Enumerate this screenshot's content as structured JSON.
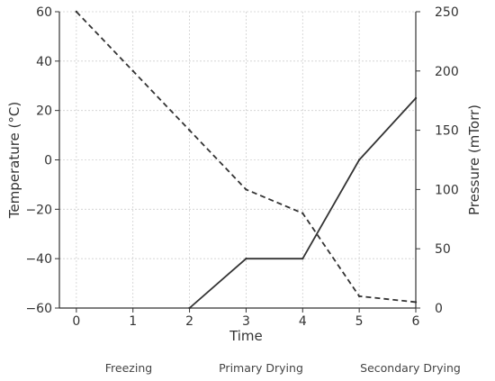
{
  "chart_data": {
    "type": "line",
    "xlabel": "Time",
    "ylabel": "Temperature (°C)",
    "y2label": "Pressure (mTorr)",
    "xlim": [
      -0.3,
      6
    ],
    "ylim": [
      -60,
      60
    ],
    "y2lim": [
      0,
      250
    ],
    "x_ticks": [
      0,
      1,
      2,
      3,
      4,
      5,
      6
    ],
    "y_ticks": [
      -60,
      -40,
      -20,
      0,
      20,
      40,
      60
    ],
    "y2_ticks": [
      0,
      50,
      100,
      150,
      200,
      250
    ],
    "grid": true,
    "series": [
      {
        "axis": "left",
        "style": "solid",
        "color": "#333333",
        "x": [
          2,
          3,
          4,
          5,
          6
        ],
        "y": [
          -60,
          -40,
          -40,
          0,
          25
        ]
      },
      {
        "axis": "right",
        "style": "dashed",
        "color": "#333333",
        "x": [
          0,
          1,
          2,
          3,
          4,
          5,
          6
        ],
        "y": [
          250,
          200,
          150,
          100,
          80,
          10,
          5
        ]
      }
    ],
    "phase_labels": [
      "Freezing",
      "Primary Drying",
      "Secondary Drying"
    ]
  }
}
